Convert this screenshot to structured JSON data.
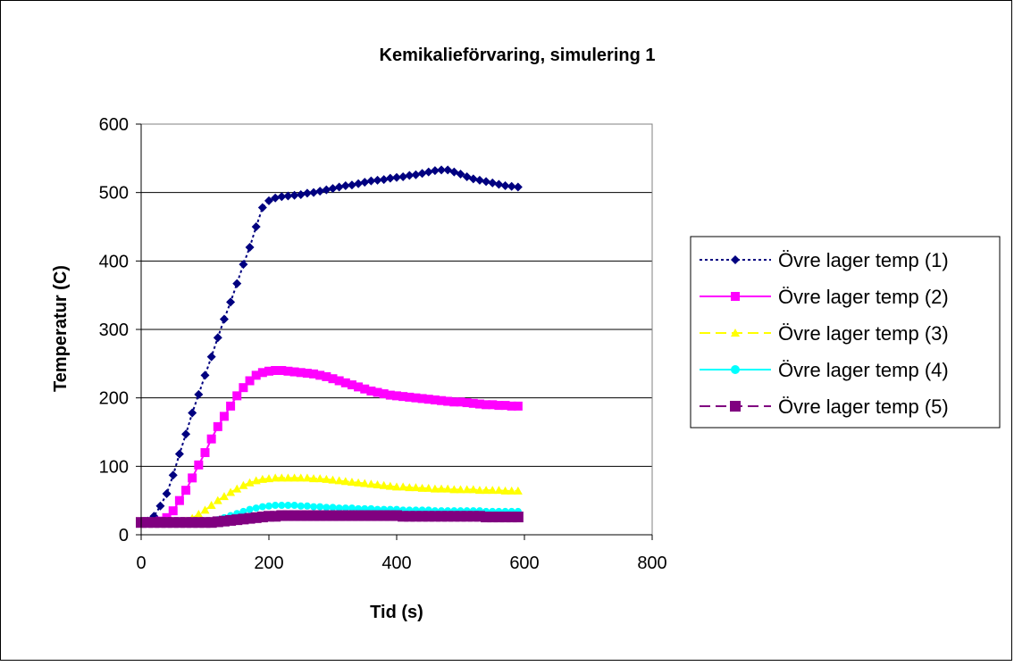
{
  "chart_data": {
    "type": "line",
    "title": "Kemikalieförvaring, simulering 1",
    "xlabel": "Tid (s)",
    "ylabel": "Temperatur (C)",
    "xlim": [
      0,
      800
    ],
    "ylim": [
      0,
      600
    ],
    "xticks": [
      0,
      200,
      400,
      600,
      800
    ],
    "yticks": [
      0,
      100,
      200,
      300,
      400,
      500,
      600
    ],
    "grid": "horizontal",
    "legend_position": "right",
    "x": [
      0,
      10,
      20,
      30,
      40,
      50,
      60,
      70,
      80,
      90,
      100,
      110,
      120,
      130,
      140,
      150,
      160,
      170,
      180,
      190,
      200,
      210,
      220,
      230,
      240,
      250,
      260,
      270,
      280,
      290,
      300,
      310,
      320,
      330,
      340,
      350,
      360,
      370,
      380,
      390,
      400,
      410,
      420,
      430,
      440,
      450,
      460,
      470,
      480,
      490,
      500,
      510,
      520,
      530,
      540,
      550,
      560,
      570,
      580,
      590
    ],
    "series": [
      {
        "name": "Övre lager temp (1)",
        "color": "#000080",
        "dash": "dotted",
        "marker": "diamond",
        "values": [
          20,
          20,
          27,
          42,
          60,
          87,
          118,
          147,
          178,
          205,
          233,
          260,
          288,
          315,
          340,
          367,
          395,
          420,
          450,
          478,
          488,
          492,
          494,
          495,
          496,
          497,
          499,
          500,
          502,
          504,
          506,
          508,
          510,
          511,
          513,
          515,
          517,
          518,
          519,
          521,
          522,
          523,
          525,
          526,
          528,
          530,
          532,
          533,
          533,
          530,
          527,
          523,
          520,
          518,
          516,
          514,
          512,
          510,
          509,
          508
        ]
      },
      {
        "name": "Övre lager temp (2)",
        "color": "#FF00FF",
        "dash": "solid",
        "marker": "square",
        "values": [
          18,
          18,
          18,
          20,
          25,
          35,
          50,
          65,
          83,
          102,
          120,
          140,
          158,
          173,
          188,
          203,
          215,
          225,
          233,
          237,
          239,
          240,
          240,
          239,
          238,
          237,
          236,
          235,
          233,
          231,
          228,
          225,
          222,
          219,
          216,
          213,
          210,
          208,
          206,
          204,
          203,
          202,
          201,
          200,
          199,
          198,
          197,
          196,
          195,
          194,
          194,
          193,
          192,
          191,
          190,
          190,
          189,
          189,
          188,
          188
        ]
      },
      {
        "name": "Övre lager temp (3)",
        "color": "#FFFF00",
        "dash": "dashed",
        "marker": "triangle",
        "values": [
          18,
          18,
          18,
          18,
          18,
          18,
          18,
          20,
          24,
          30,
          36,
          43,
          50,
          56,
          62,
          67,
          72,
          76,
          79,
          81,
          82,
          83,
          83,
          83,
          83,
          83,
          83,
          82,
          82,
          81,
          80,
          79,
          78,
          77,
          76,
          75,
          74,
          73,
          72,
          71,
          70,
          70,
          69,
          69,
          68,
          68,
          67,
          67,
          67,
          66,
          66,
          66,
          66,
          65,
          65,
          65,
          65,
          64,
          64,
          64
        ]
      },
      {
        "name": "Övre lager temp (4)",
        "color": "#00FFFF",
        "dash": "solid",
        "marker": "circle",
        "values": [
          18,
          18,
          18,
          18,
          18,
          18,
          18,
          18,
          18,
          18,
          19,
          20,
          22,
          25,
          28,
          31,
          34,
          37,
          39,
          41,
          42,
          43,
          43,
          43,
          43,
          42,
          42,
          41,
          41,
          40,
          40,
          39,
          39,
          39,
          38,
          38,
          38,
          37,
          37,
          37,
          37,
          36,
          36,
          36,
          36,
          36,
          35,
          35,
          35,
          35,
          35,
          35,
          35,
          35,
          34,
          34,
          34,
          34,
          34,
          34
        ]
      },
      {
        "name": "Övre lager temp (5)",
        "color": "#800080",
        "dash": "dashed",
        "marker": "square",
        "values": [
          18,
          18,
          18,
          18,
          18,
          18,
          18,
          18,
          18,
          18,
          18,
          18,
          19,
          20,
          21,
          22,
          23,
          24,
          25,
          26,
          27,
          27,
          28,
          28,
          28,
          28,
          28,
          28,
          28,
          28,
          28,
          28,
          28,
          28,
          28,
          28,
          28,
          28,
          28,
          28,
          28,
          27,
          27,
          27,
          27,
          27,
          27,
          27,
          27,
          27,
          27,
          27,
          27,
          27,
          26,
          26,
          26,
          26,
          26,
          26
        ]
      }
    ]
  }
}
